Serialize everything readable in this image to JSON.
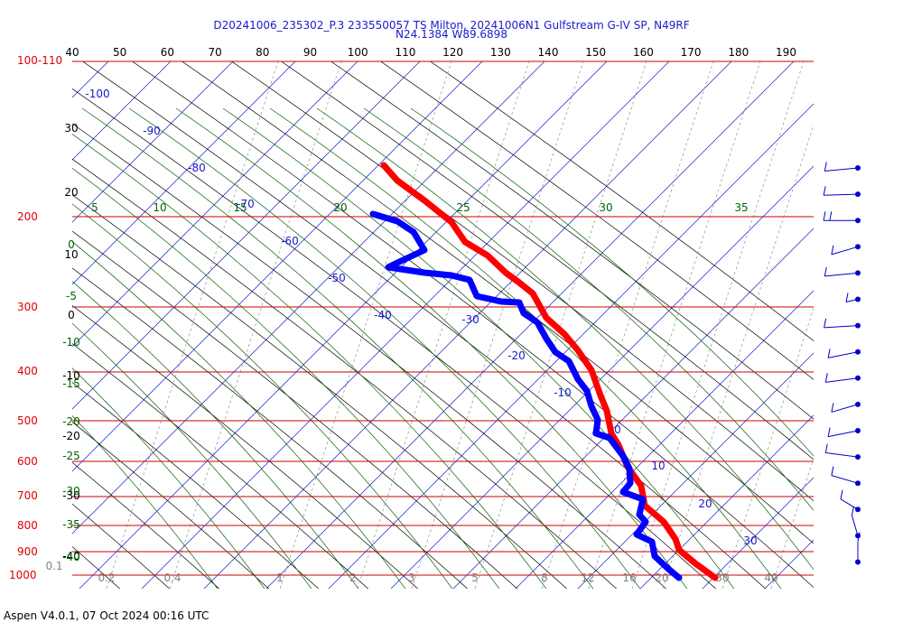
{
  "header": {
    "title_line1": "D20241006_235302_P.3 233550057 TS Milton, 20241006N1 Gulfstream G-IV SP, N49RF",
    "title_line2": "N24.1384 W89.6898"
  },
  "footer": {
    "text": "Aspen V4.0.1, 07 Oct 2024  00:16 UTC"
  },
  "chart_data": {
    "type": "line",
    "title": "D20241006_235302_P.3 233550057 TS Milton, 20241006N1 Gulfstream G-IV SP, N49RF",
    "subtitle": "N24.1384 W89.6898",
    "chart_kind_note": "skew-T log-P",
    "colors": {
      "isobar": "#cc0000",
      "pressure_label": "#e00000",
      "temperature": "#ff0000",
      "dewpoint": "#0000ff",
      "isotherm": "#1a1acc",
      "dry_adiabat": "#000000",
      "moist_adiabat": "#006400",
      "mixing_ratio": "#808080",
      "wind_barb": "#0000cc"
    },
    "pressure_labels": [
      "100-110",
      "200",
      "300",
      "400",
      "500",
      "600",
      "700",
      "800",
      "900",
      "1000"
    ],
    "top_axis_labels": [
      "40",
      "50",
      "60",
      "70",
      "80",
      "90",
      "100",
      "110",
      "120",
      "130",
      "140",
      "150",
      "160",
      "170",
      "180",
      "190"
    ],
    "left_black_labels": [
      "30",
      "20",
      "10",
      "0",
      "-10",
      "-20",
      "-30",
      "-40"
    ],
    "left_green_labels": [
      "0",
      "-5",
      "-10",
      "-15",
      "-20",
      "-25",
      "-30",
      "-35",
      "-40"
    ],
    "moist_top_labels": [
      "5",
      "10",
      "15",
      "20",
      "25",
      "30",
      "35"
    ],
    "isotherm_labels": [
      "-100",
      "-90",
      "-80",
      "-70",
      "-60",
      "-50",
      "-40",
      "-30",
      "-20",
      "-10",
      "0",
      "10",
      "20",
      "30"
    ],
    "mixing_ratio_labels": [
      "0.1",
      "0.2",
      "0.4",
      "1",
      "2",
      "3",
      "5",
      "8",
      "12",
      "16",
      "20",
      "30",
      "40"
    ],
    "series": [
      {
        "name": "Temperature",
        "points": [
          [
            425,
            183
          ],
          [
            440,
            200
          ],
          [
            470,
            222
          ],
          [
            500,
            246
          ],
          [
            515,
            268
          ],
          [
            540,
            283
          ],
          [
            560,
            302
          ],
          [
            575,
            313
          ],
          [
            590,
            325
          ],
          [
            605,
            352
          ],
          [
            625,
            370
          ],
          [
            640,
            388
          ],
          [
            655,
            410
          ],
          [
            665,
            438
          ],
          [
            672,
            455
          ],
          [
            677,
            480
          ],
          [
            685,
            493
          ],
          [
            695,
            517
          ],
          [
            710,
            538
          ],
          [
            714,
            560
          ],
          [
            735,
            578
          ],
          [
            748,
            597
          ],
          [
            752,
            609
          ],
          [
            770,
            624
          ],
          [
            792,
            640
          ]
        ]
      },
      {
        "name": "Dewpoint",
        "points": [
          [
            413,
            237
          ],
          [
            440,
            245
          ],
          [
            458,
            257
          ],
          [
            470,
            277
          ],
          [
            440,
            291
          ],
          [
            430,
            296
          ],
          [
            470,
            302
          ],
          [
            500,
            305
          ],
          [
            520,
            310
          ],
          [
            528,
            328
          ],
          [
            555,
            334
          ],
          [
            575,
            335
          ],
          [
            580,
            347
          ],
          [
            595,
            357
          ],
          [
            605,
            375
          ],
          [
            615,
            390
          ],
          [
            630,
            400
          ],
          [
            640,
            420
          ],
          [
            650,
            433
          ],
          [
            655,
            450
          ],
          [
            662,
            465
          ],
          [
            660,
            480
          ],
          [
            675,
            485
          ],
          [
            690,
            505
          ],
          [
            697,
            519
          ],
          [
            698,
            535
          ],
          [
            690,
            545
          ],
          [
            712,
            553
          ],
          [
            708,
            570
          ],
          [
            715,
            578
          ],
          [
            705,
            592
          ],
          [
            722,
            600
          ],
          [
            725,
            616
          ],
          [
            740,
            630
          ],
          [
            752,
            640
          ]
        ]
      }
    ],
    "wind_barbs": [
      {
        "tick": 0,
        "angle": -15,
        "barbs": 1
      },
      {
        "tick": 1,
        "angle": -5,
        "barbs": 1
      },
      {
        "tick": 2,
        "angle": 0,
        "barbs": 2
      },
      {
        "tick": 3,
        "angle": -40,
        "barbs": 1
      },
      {
        "tick": 4,
        "angle": -15,
        "barbs": 1
      },
      {
        "tick": 5,
        "angle": -70,
        "barbs": 1
      },
      {
        "tick": 6,
        "angle": -10,
        "barbs": 1
      },
      {
        "tick": 7,
        "angle": -30,
        "barbs": 1
      },
      {
        "tick": 8,
        "angle": -20,
        "barbs": 1
      },
      {
        "tick": 9,
        "angle": -40,
        "barbs": 1
      },
      {
        "tick": 10,
        "angle": -30,
        "barbs": 1
      },
      {
        "tick": 11,
        "angle": 20,
        "barbs": 1
      },
      {
        "tick": 12,
        "angle": 40,
        "barbs": 1
      },
      {
        "tick": 13,
        "angle": 60,
        "barbs": 1
      },
      {
        "tick": 14,
        "angle": 80,
        "barbs": 1
      },
      {
        "tick": 15,
        "angle": 90,
        "barbs": 1
      }
    ],
    "x_label": "",
    "y_label": "",
    "grid": true
  }
}
